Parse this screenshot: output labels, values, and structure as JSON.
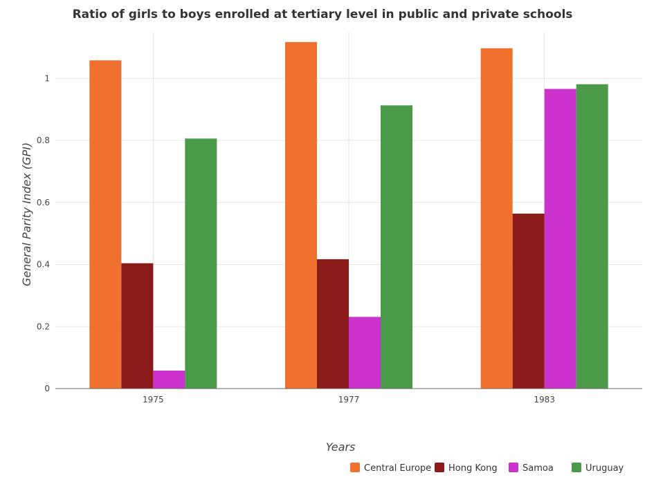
{
  "chart_data": {
    "type": "bar",
    "title": "Ratio of girls to boys enrolled at tertiary level in public and private schools",
    "xlabel": "Years",
    "ylabel": "General Parity Index (GPI)",
    "categories": [
      "1975",
      "1977",
      "1983"
    ],
    "ylim": [
      0,
      1.15
    ],
    "yticks": [
      "0",
      "0.2",
      "0.4",
      "0.6",
      "0.8",
      "1"
    ],
    "ytick_values": [
      0,
      0.2,
      0.4,
      0.6,
      0.8,
      1.0
    ],
    "grid": true,
    "legend_position": "bottom-right",
    "series": [
      {
        "name": "Central Europe",
        "color": "#f07030",
        "values": [
          1.058,
          1.117,
          1.097
        ]
      },
      {
        "name": "Hong Kong",
        "color": "#8b1a1a",
        "values": [
          0.404,
          0.417,
          0.564
        ]
      },
      {
        "name": "Samoa",
        "color": "#cc33cc",
        "values": [
          0.058,
          0.231,
          0.966
        ]
      },
      {
        "name": "Uruguay",
        "color": "#4a9a4a",
        "values": [
          0.806,
          0.913,
          0.981
        ]
      }
    ]
  }
}
